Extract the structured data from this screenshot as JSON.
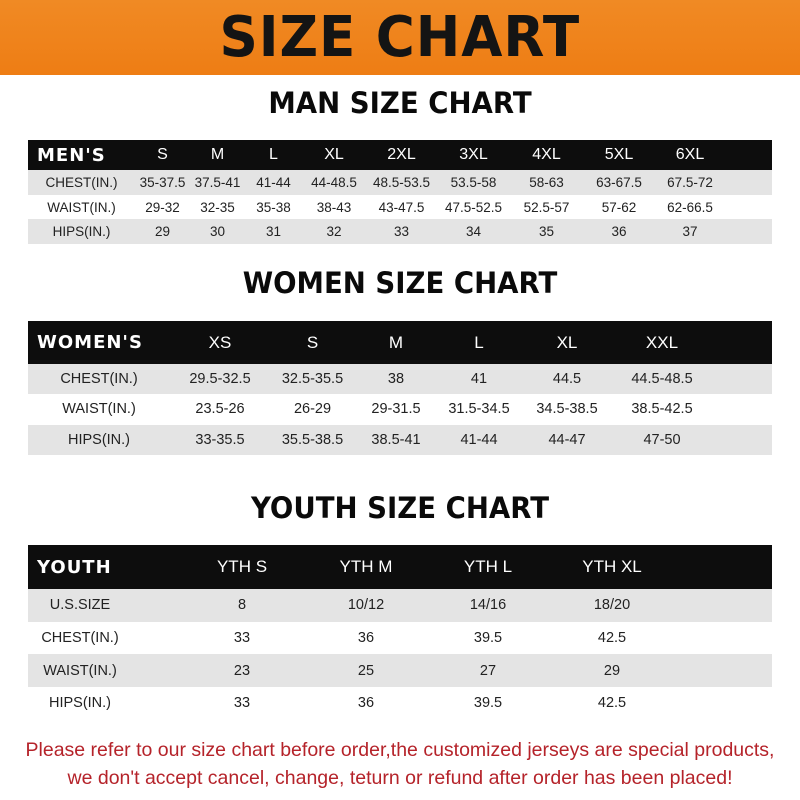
{
  "banner_title": "SIZE CHART",
  "men": {
    "title": "MAN SIZE CHART",
    "header": [
      "MEN'S",
      "S",
      "M",
      "L",
      "XL",
      "2XL",
      "3XL",
      "4XL",
      "5XL",
      "6XL"
    ],
    "rows": [
      [
        "CHEST(IN.)",
        "35-37.5",
        "37.5-41",
        "41-44",
        "44-48.5",
        "48.5-53.5",
        "53.5-58",
        "58-63",
        "63-67.5",
        "67.5-72"
      ],
      [
        "WAIST(IN.)",
        "29-32",
        "32-35",
        "35-38",
        "38-43",
        "43-47.5",
        "47.5-52.5",
        "52.5-57",
        "57-62",
        "62-66.5"
      ],
      [
        "HIPS(IN.)",
        "29",
        "30",
        "31",
        "32",
        "33",
        "34",
        "35",
        "36",
        "37"
      ]
    ]
  },
  "women": {
    "title": "WOMEN SIZE CHART",
    "header": [
      "WOMEN'S",
      "XS",
      "S",
      "M",
      "L",
      "XL",
      "XXL"
    ],
    "rows": [
      [
        "CHEST(IN.)",
        "29.5-32.5",
        "32.5-35.5",
        "38",
        "41",
        "44.5",
        "44.5-48.5"
      ],
      [
        "WAIST(IN.)",
        "23.5-26",
        "26-29",
        "29-31.5",
        "31.5-34.5",
        "34.5-38.5",
        "38.5-42.5"
      ],
      [
        "HIPS(IN.)",
        "33-35.5",
        "35.5-38.5",
        "38.5-41",
        "41-44",
        "44-47",
        "47-50"
      ]
    ]
  },
  "youth": {
    "title": "YOUTH SIZE CHART",
    "header": [
      "YOUTH",
      "YTH S",
      "YTH M",
      "YTH L",
      "YTH XL"
    ],
    "rows": [
      [
        "U.S.SIZE",
        "8",
        "10/12",
        "14/16",
        "18/20"
      ],
      [
        "CHEST(IN.)",
        "33",
        "36",
        "39.5",
        "42.5"
      ],
      [
        "WAIST(IN.)",
        "23",
        "25",
        "27",
        "29"
      ],
      [
        "HIPS(IN.)",
        "33",
        "36",
        "39.5",
        "42.5"
      ]
    ]
  },
  "note": {
    "line1": "Please refer to our size chart before order,the customized jerseys are special products,",
    "line2": "we don't accept cancel, change, teturn or refund after order has been placed!"
  },
  "colors": {
    "banner": "#ee7d14",
    "header_row": "#0d0d0d",
    "stripe": "#e4e4e4",
    "note": "#b5232a"
  }
}
